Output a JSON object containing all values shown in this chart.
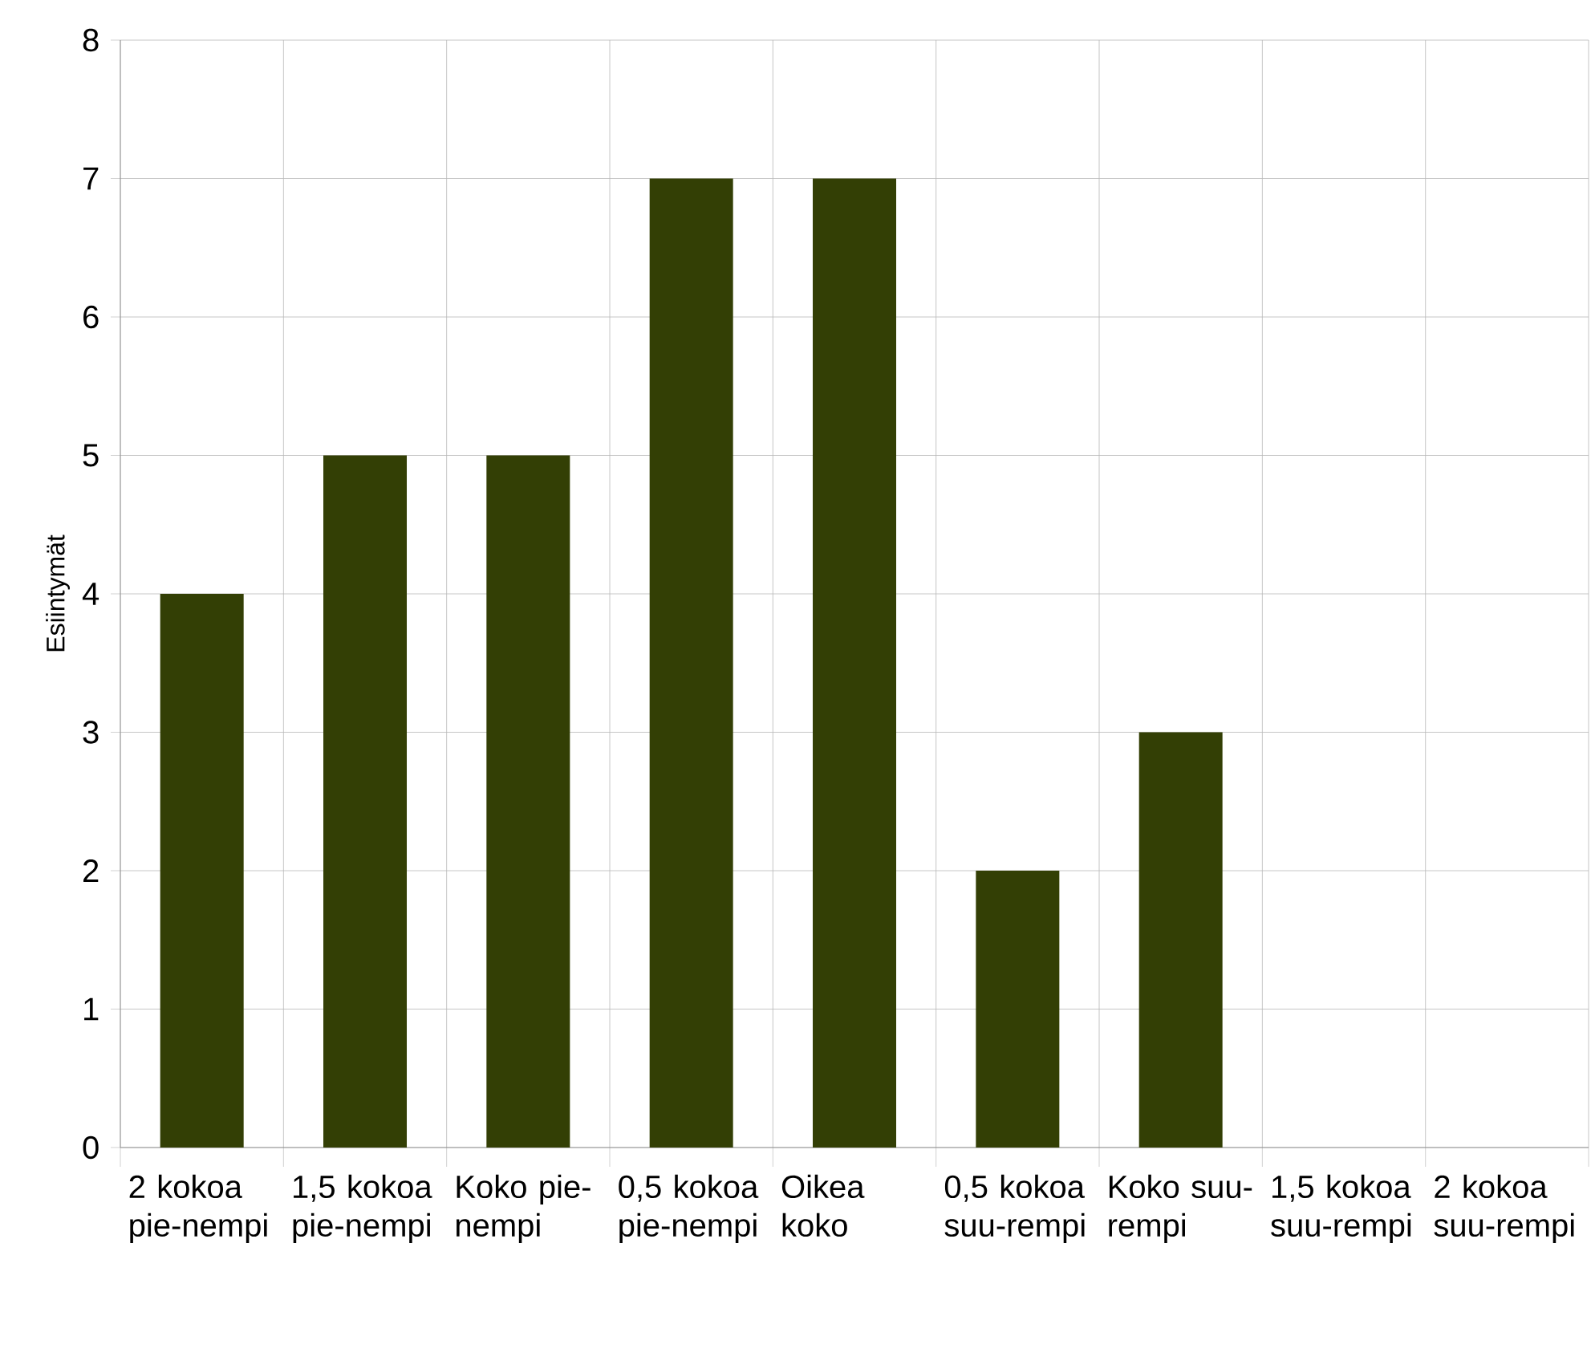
{
  "chart_data": {
    "type": "bar",
    "ylabel": "Esiintymät",
    "categories": [
      "2 kokoa pie-nempi",
      "1,5 kokoa pie-nempi",
      "Koko pie-nempi",
      "0,5 kokoa pie-nempi",
      "Oikea koko",
      "0,5 kokoa suu-rempi",
      "Koko suu-rempi",
      "1,5 kokoa suu-rempi",
      "2 kokoa suu-rempi"
    ],
    "values": [
      4,
      5,
      5,
      7,
      7,
      2,
      3,
      0,
      0
    ],
    "color": "#333f05",
    "ylim": [
      0,
      8
    ],
    "yticks": [
      0,
      1,
      2,
      3,
      4,
      5,
      6,
      7,
      8
    ],
    "grid": true
  }
}
